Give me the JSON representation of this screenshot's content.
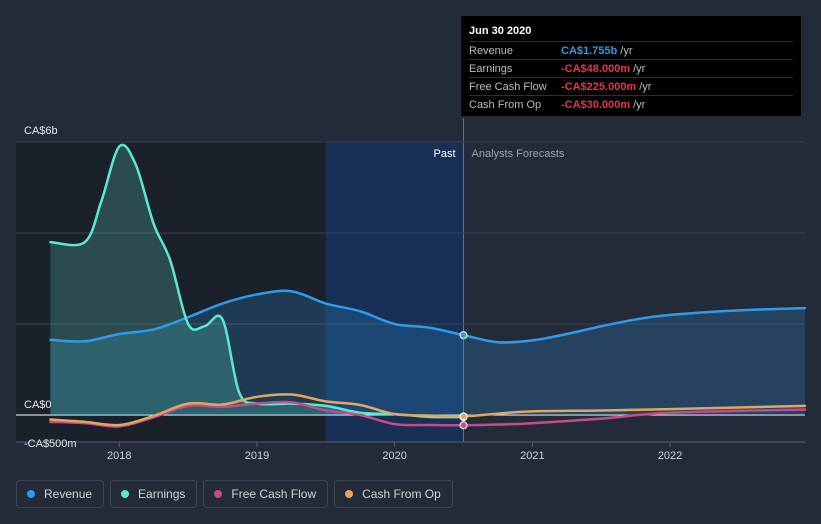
{
  "tooltip": {
    "date": "Jun 30 2020",
    "rows": [
      {
        "label": "Revenue",
        "value": "CA$1.755b",
        "unit": "/yr",
        "color": "#2f9ae8"
      },
      {
        "label": "Earnings",
        "value": "-CA$48.000m",
        "unit": "/yr",
        "color": "#e8363f"
      },
      {
        "label": "Free Cash Flow",
        "value": "-CA$225.000m",
        "unit": "/yr",
        "color": "#e8363f"
      },
      {
        "label": "Cash From Op",
        "value": "-CA$30.000m",
        "unit": "/yr",
        "color": "#e8363f"
      }
    ]
  },
  "legend": [
    {
      "label": "Revenue",
      "color": "#2f9ae8"
    },
    {
      "label": "Earnings",
      "color": "#5ee7cf"
    },
    {
      "label": "Free Cash Flow",
      "color": "#c94a8a"
    },
    {
      "label": "Cash From Op",
      "color": "#e0a85c"
    }
  ],
  "chart_data": {
    "type": "line",
    "y_unit": "CA$ millions",
    "y_tick_labels": [
      "CA$6b",
      "CA$0",
      "-CA$500m"
    ],
    "x_tick_labels": [
      "2018",
      "2019",
      "2020",
      "2021",
      "2022"
    ],
    "ylim": [
      -600,
      6000
    ],
    "xlim": [
      2017.25,
      2022.98
    ],
    "past_label": "Past",
    "forecast_label": "Analysts Forecasts",
    "past_shade_start": 2019.5,
    "divider": 2020.5,
    "grid": true,
    "series": [
      {
        "name": "Revenue",
        "color": "#2f9ae8",
        "fill": true,
        "x": [
          2017.5,
          2017.75,
          2018.0,
          2018.25,
          2018.5,
          2018.75,
          2019.0,
          2019.25,
          2019.5,
          2019.75,
          2020.0,
          2020.25,
          2020.5,
          2020.75,
          2021.0,
          2021.25,
          2021.5,
          2021.75,
          2022.0,
          2022.5,
          2022.98
        ],
        "y": [
          1650,
          1620,
          1780,
          1880,
          2150,
          2450,
          2650,
          2720,
          2450,
          2280,
          2000,
          1920,
          1755,
          1600,
          1640,
          1780,
          1950,
          2100,
          2200,
          2300,
          2350
        ]
      },
      {
        "name": "Earnings",
        "color": "#5ee7cf",
        "fill": true,
        "x": [
          2017.5,
          2017.75,
          2017.87,
          2018.0,
          2018.12,
          2018.25,
          2018.37,
          2018.5,
          2018.62,
          2018.75,
          2018.87,
          2019.0,
          2019.25,
          2019.5,
          2019.75,
          2020.0,
          2020.25,
          2020.5
        ],
        "y": [
          3800,
          3800,
          4700,
          5900,
          5500,
          4200,
          3400,
          2000,
          1950,
          2100,
          500,
          250,
          250,
          200,
          50,
          20,
          -40,
          -48
        ]
      },
      {
        "name": "Free Cash Flow",
        "color": "#c94a8a",
        "fill": false,
        "x": [
          2017.5,
          2017.75,
          2018.0,
          2018.25,
          2018.5,
          2018.75,
          2019.0,
          2019.25,
          2019.5,
          2019.75,
          2020.0,
          2020.25,
          2020.5,
          2020.75,
          2021.0,
          2021.5,
          2022.0,
          2022.98
        ],
        "y": [
          -150,
          -180,
          -250,
          -50,
          200,
          180,
          250,
          280,
          100,
          0,
          -200,
          -220,
          -225,
          -210,
          -180,
          -80,
          50,
          120
        ]
      },
      {
        "name": "Cash From Op",
        "color": "#e0a85c",
        "fill": false,
        "x": [
          2017.5,
          2017.75,
          2018.0,
          2018.25,
          2018.5,
          2018.75,
          2019.0,
          2019.25,
          2019.5,
          2019.75,
          2020.0,
          2020.25,
          2020.5,
          2020.75,
          2021.0,
          2021.5,
          2022.0,
          2022.98
        ],
        "y": [
          -100,
          -150,
          -220,
          -20,
          250,
          230,
          400,
          450,
          300,
          220,
          20,
          -10,
          -30,
          30,
          80,
          100,
          130,
          200
        ]
      }
    ]
  }
}
